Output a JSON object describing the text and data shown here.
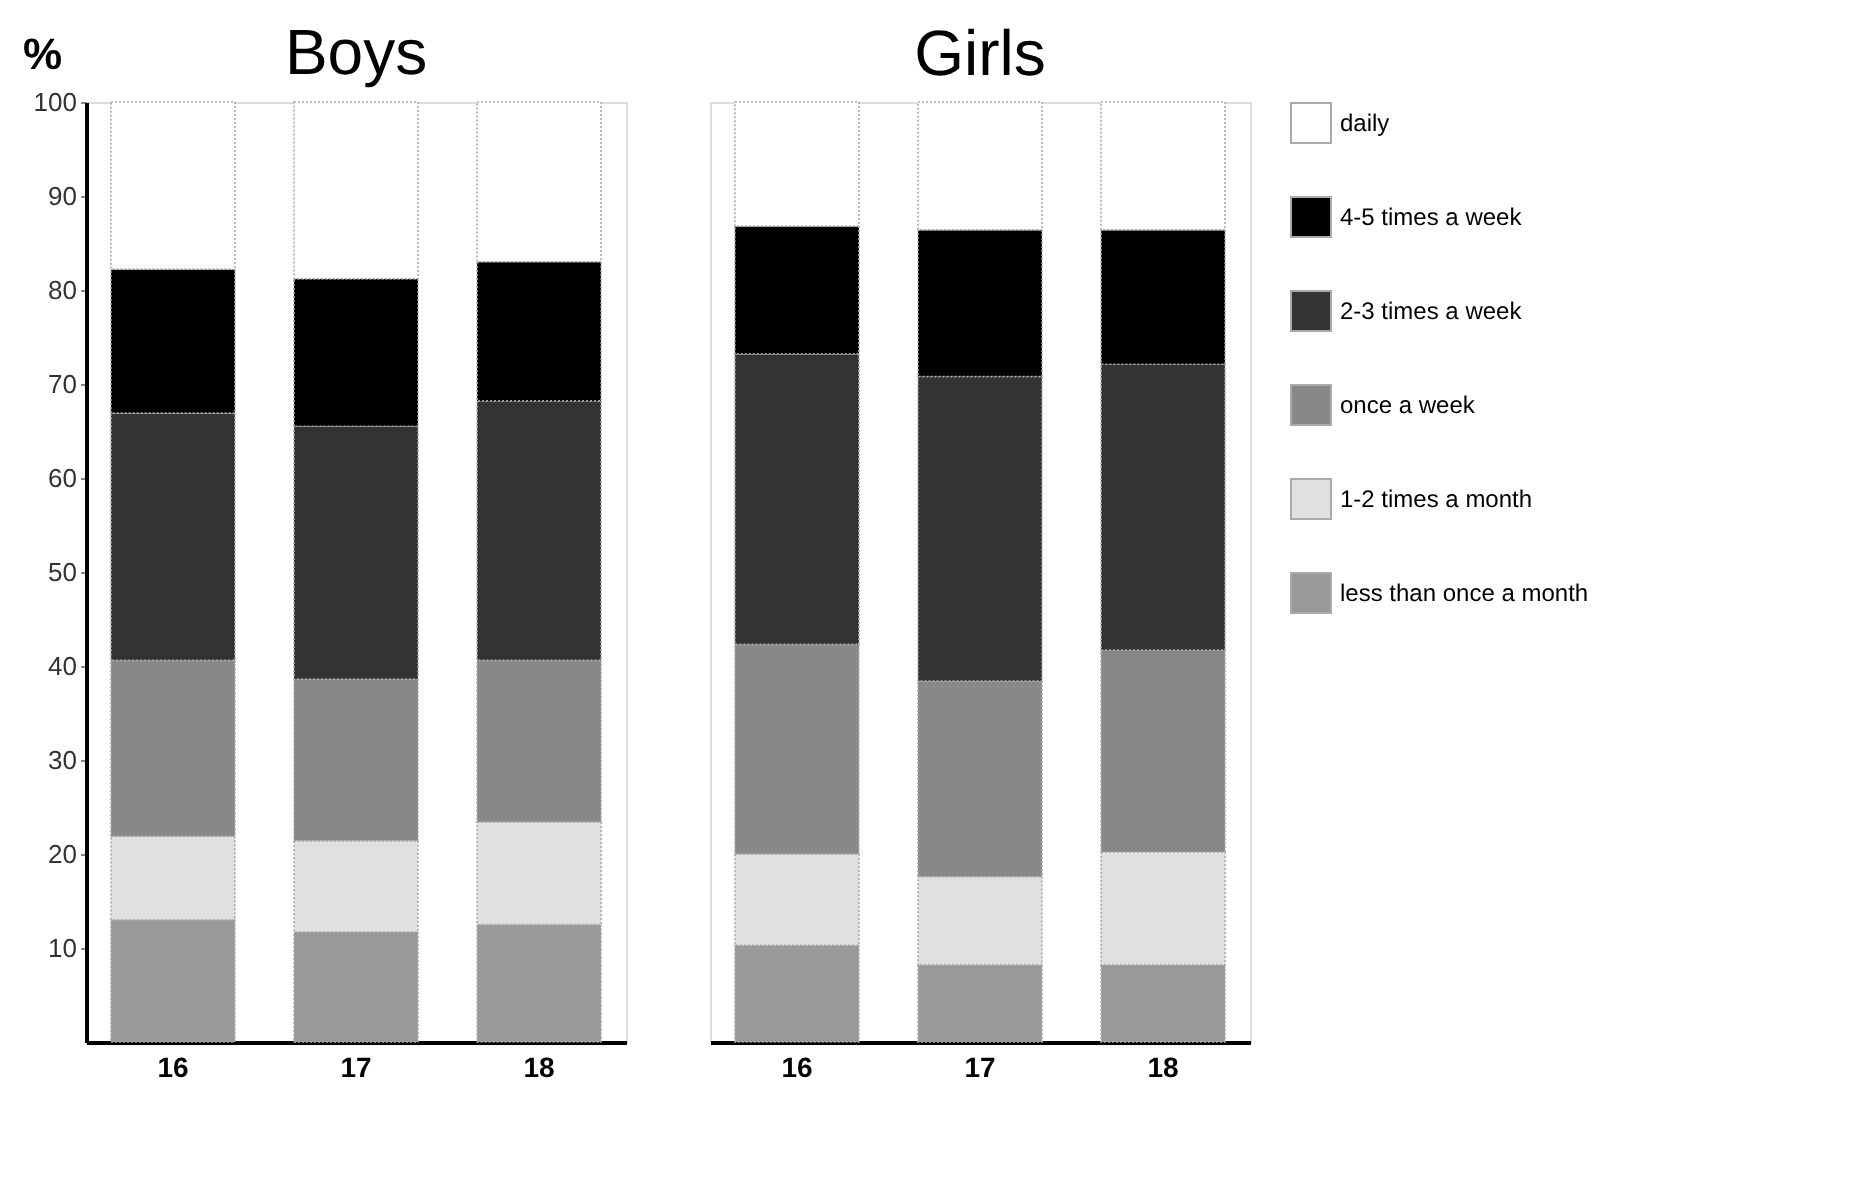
{
  "chart_data": [
    {
      "type": "bar",
      "stacked": true,
      "title": "Boys",
      "ylabel": "%",
      "categories": [
        "16",
        "17",
        "18"
      ],
      "ylim": [
        0,
        100
      ],
      "yticks": [
        10,
        20,
        30,
        40,
        50,
        60,
        70,
        80,
        90,
        100
      ],
      "grid": false,
      "legend": "right",
      "series": [
        {
          "name": "less than once a month",
          "color": "#999999",
          "values": [
            13.0,
            11.7,
            12.5
          ]
        },
        {
          "name": "1-2 times a month",
          "color": "#e0e0e0",
          "values": [
            8.9,
            9.7,
            10.9
          ]
        },
        {
          "name": "once a week",
          "color": "#888888",
          "values": [
            18.7,
            17.2,
            17.2
          ]
        },
        {
          "name": "2-3 times a week",
          "color": "#333333",
          "values": [
            26.3,
            26.9,
            27.6
          ]
        },
        {
          "name": "4-5 times a week",
          "color": "#000000",
          "values": [
            15.3,
            15.7,
            14.8
          ]
        },
        {
          "name": "daily",
          "color": "#ffffff",
          "values": [
            17.8,
            18.8,
            17.0
          ]
        }
      ]
    },
    {
      "type": "bar",
      "stacked": true,
      "title": "Girls",
      "categories": [
        "16",
        "17",
        "18"
      ],
      "ylim": [
        0,
        100
      ],
      "yticks": [
        10,
        20,
        30,
        40,
        50,
        60,
        70,
        80,
        90,
        100
      ],
      "grid": false,
      "legend": "right",
      "tick_labels": "x",
      "series": [
        {
          "name": "less than once a month",
          "color": "#999999",
          "values": [
            10.3,
            8.2,
            8.2
          ]
        },
        {
          "name": "1-2 times a month",
          "color": "#e0e0e0",
          "values": [
            9.7,
            9.4,
            12.0
          ]
        },
        {
          "name": "once a week",
          "color": "#888888",
          "values": [
            22.3,
            20.8,
            21.5
          ]
        },
        {
          "name": "2-3 times a week",
          "color": "#333333",
          "values": [
            30.9,
            32.4,
            30.4
          ]
        },
        {
          "name": "4-5 times a week",
          "color": "#000000",
          "values": [
            13.6,
            15.6,
            14.3
          ]
        },
        {
          "name": "daily",
          "color": "#ffffff",
          "values": [
            13.2,
            13.6,
            13.6
          ]
        }
      ]
    }
  ]
}
